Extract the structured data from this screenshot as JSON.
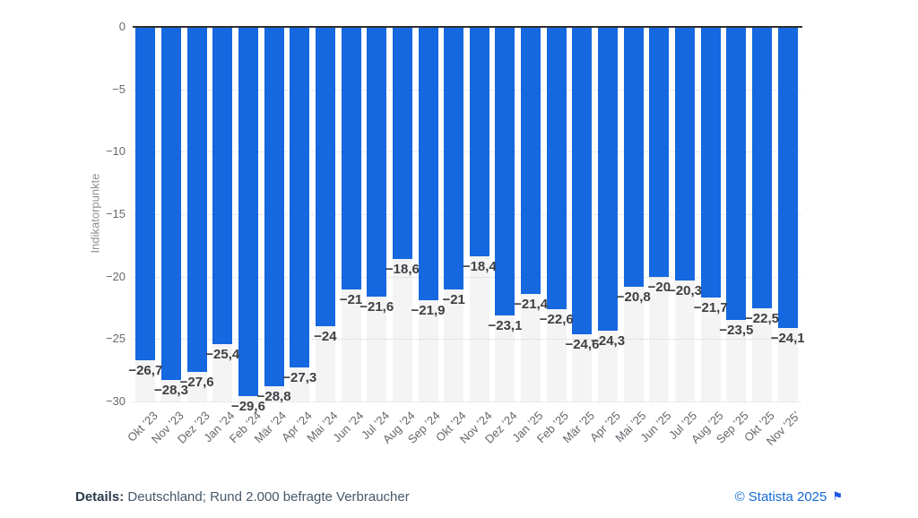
{
  "chart_data": {
    "type": "bar",
    "title": "",
    "ylabel": "Indikatorpunkte",
    "xlabel": "",
    "ylim": [
      -30,
      0
    ],
    "yticks": [
      0,
      -5,
      -10,
      -15,
      -20,
      -25,
      -30
    ],
    "ytick_labels": [
      "0",
      "−5",
      "−10",
      "−15",
      "−20",
      "−25",
      "−30"
    ],
    "grid": "horizontal-dotted",
    "legend_position": "none",
    "bar_color": "#1568e0",
    "track_color": "#f4f4f4",
    "zero_axis_color": "#2f2f2f",
    "categories": [
      "Okt ’23",
      "Nov ’23",
      "Dez ’23",
      "Jan ’24",
      "Feb ’24",
      "Mär ’24",
      "Apr ’24",
      "Mai ’24",
      "Jun ’24",
      "Jul ’24",
      "Aug ’24",
      "Sep ’24",
      "Okt ’24",
      "Nov ’24",
      "Dez ’24",
      "Jan ’25",
      "Feb ’25",
      "Mär ’25",
      "Apr ’25",
      "Mai ’25",
      "Jun ’25",
      "Jul ’25",
      "Aug ’25",
      "Sep ’25",
      "Okt ’25",
      "Nov ’25’"
    ],
    "values": [
      -26.7,
      -28.3,
      -27.6,
      -25.4,
      -29.6,
      -28.8,
      -27.3,
      -24,
      -21,
      -21.6,
      -18.6,
      -21.9,
      -21,
      -18.4,
      -23.1,
      -21.4,
      -22.6,
      -24.6,
      -24.3,
      -20.8,
      -20,
      -20.3,
      -21.7,
      -23.5,
      -22.5,
      -24.1
    ],
    "value_labels": [
      "−26,7",
      "−28,3",
      "−27,6",
      "−25,4",
      "−29,6",
      "−28,8",
      "−27,3",
      "−24",
      "−21",
      "−21,6",
      "−18,6",
      "−21,9",
      "−21",
      "−18,4",
      "−23,1",
      "−21,4",
      "−22,6",
      "−24,6",
      "−24,3",
      "−20,8",
      "−20",
      "−20,3",
      "−21,7",
      "−23,5",
      "−22,5",
      "−24,1"
    ]
  },
  "footer": {
    "details_label": "Details:",
    "details_text": "Deutschland; Rund 2.000 befragte Verbraucher",
    "copyright": "© Statista 2025",
    "flag_icon": "⚑",
    "link_color": "#156bd8"
  }
}
